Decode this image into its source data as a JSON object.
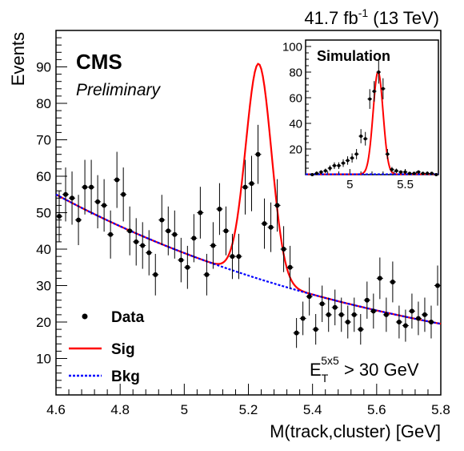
{
  "header": {
    "lumi_text": "41.7 fb",
    "lumi_exp": "-1",
    "lumi_energy": " (13 TeV)"
  },
  "labels": {
    "cms": "CMS",
    "preliminary": "Preliminary",
    "cut_pre": "E",
    "cut_sub": "T",
    "cut_sup": "5x5",
    "cut_post": " > 30 GeV",
    "simulation": "Simulation"
  },
  "colors": {
    "data": "#000000",
    "signal": "#ff0000",
    "background": "#0000ff"
  },
  "chart_data": [
    {
      "type": "scatter",
      "title": "",
      "xlabel": "M(track,cluster) [GeV]",
      "ylabel": "Events",
      "xlim": [
        4.6,
        5.8
      ],
      "ylim": [
        0,
        100
      ],
      "xticks": [
        "4.6",
        "4.8",
        "5",
        "5.2",
        "5.4",
        "5.6",
        "5.8"
      ],
      "yticks": [
        "10",
        "20",
        "30",
        "40",
        "50",
        "60",
        "70",
        "80",
        "90"
      ],
      "legend": {
        "placement": "bottom-left",
        "entries": [
          "Data",
          "Sig",
          "Bkg"
        ]
      },
      "series": [
        {
          "name": "Data",
          "style": "points",
          "x": [
            4.61,
            4.63,
            4.65,
            4.67,
            4.69,
            4.71,
            4.73,
            4.75,
            4.77,
            4.79,
            4.81,
            4.83,
            4.85,
            4.87,
            4.89,
            4.91,
            4.93,
            4.95,
            4.97,
            4.99,
            5.01,
            5.03,
            5.05,
            5.07,
            5.09,
            5.11,
            5.13,
            5.15,
            5.17,
            5.19,
            5.21,
            5.23,
            5.25,
            5.27,
            5.29,
            5.31,
            5.33,
            5.35,
            5.37,
            5.39,
            5.41,
            5.43,
            5.45,
            5.47,
            5.49,
            5.51,
            5.53,
            5.55,
            5.57,
            5.59,
            5.61,
            5.63,
            5.65,
            5.67,
            5.69,
            5.71,
            5.73,
            5.75,
            5.77,
            5.79
          ],
          "y": [
            49,
            55,
            54,
            48,
            57,
            57,
            53,
            52,
            44,
            59,
            55,
            45,
            42,
            41,
            39,
            33,
            48,
            45,
            44,
            37,
            35,
            43,
            50,
            33,
            41,
            51,
            45,
            38,
            38,
            57,
            58,
            66,
            47,
            46,
            52,
            40,
            35,
            17,
            21,
            27,
            18,
            25,
            22,
            24,
            22,
            20,
            22,
            18,
            26,
            23,
            32,
            22,
            31,
            20,
            19,
            23,
            21,
            22,
            20,
            30
          ],
          "yerr": [
            7,
            7.4,
            7.3,
            6.9,
            7.5,
            7.5,
            7.3,
            7.2,
            6.6,
            7.7,
            7.4,
            6.7,
            6.5,
            6.4,
            6.2,
            5.7,
            6.9,
            6.7,
            6.6,
            6.1,
            5.9,
            6.6,
            7.1,
            5.7,
            6.4,
            7.1,
            6.7,
            6.2,
            6.2,
            7.5,
            7.6,
            8.1,
            6.9,
            6.8,
            7.2,
            6.3,
            5.9,
            4.1,
            4.6,
            5.2,
            4.2,
            5,
            4.7,
            4.9,
            4.7,
            4.5,
            4.7,
            4.2,
            5.1,
            4.8,
            5.7,
            4.7,
            5.6,
            4.5,
            4.4,
            4.8,
            4.6,
            4.7,
            4.5,
            5.5
          ]
        },
        {
          "name": "Sig",
          "style": "line",
          "shape": {
            "mean": 5.232,
            "sigma": 0.04,
            "peak_y": 59
          }
        },
        {
          "name": "Bkg",
          "style": "dashed",
          "shape": {
            "y_at_xmin": 55,
            "y_at_xmax": 19.5
          }
        }
      ]
    },
    {
      "type": "scatter",
      "title": "Simulation",
      "xlim": [
        4.6,
        5.8
      ],
      "ylim": [
        0,
        105
      ],
      "xticks": [
        "5",
        "5.5"
      ],
      "yticks": [
        "20",
        "40",
        "60",
        "80",
        "100"
      ],
      "series": [
        {
          "name": "Simulation",
          "style": "points",
          "x": [
            4.66,
            4.7,
            4.74,
            4.78,
            4.82,
            4.86,
            4.9,
            4.94,
            4.98,
            5.02,
            5.06,
            5.1,
            5.14,
            5.18,
            5.22,
            5.26,
            5.3,
            5.34,
            5.38,
            5.42,
            5.46,
            5.5,
            5.54,
            5.58,
            5.62,
            5.66,
            5.7,
            5.74,
            5.78
          ],
          "y": [
            0,
            1,
            2,
            3,
            5,
            7,
            7,
            9,
            11,
            13,
            16,
            30,
            28,
            59,
            65,
            80,
            67,
            16,
            4,
            3,
            2,
            2,
            1,
            1,
            2,
            1,
            1,
            1,
            0
          ],
          "yerr": [
            0.5,
            1,
            1.4,
            1.7,
            2.2,
            2.6,
            2.6,
            3,
            3.3,
            3.6,
            4,
            5.5,
            5.3,
            7.7,
            8,
            9,
            8.2,
            4,
            2,
            1.7,
            1.4,
            1.4,
            1,
            1,
            1.4,
            1,
            1,
            1,
            0.5
          ]
        },
        {
          "name": "Sig",
          "style": "line",
          "shape": {
            "mean": 5.255,
            "sigma": 0.045,
            "peak_y": 80
          }
        },
        {
          "name": "Bkg",
          "style": "dashed",
          "shape": {
            "y_at_xmin": 0.3,
            "y_at_xmax": 0.3
          }
        }
      ]
    }
  ]
}
